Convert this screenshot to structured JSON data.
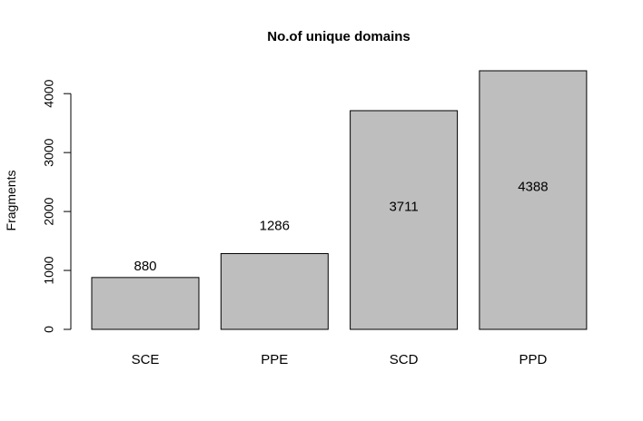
{
  "chart_data": {
    "type": "bar",
    "title": "No.of unique domains",
    "xlabel": "",
    "ylabel": "Fragments",
    "categories": [
      "SCE",
      "PPE",
      "SCD",
      "PPD"
    ],
    "values": [
      880,
      1286,
      3711,
      4388
    ],
    "data_labels": [
      "880",
      "1286",
      "3711",
      "4388"
    ],
    "ylim": [
      0,
      4388
    ],
    "yticks": [
      0,
      1000,
      2000,
      3000,
      4000
    ],
    "ytick_labels": [
      "0",
      "1000",
      "2000",
      "3000",
      "4000"
    ],
    "bar_color": "#bebebe",
    "grid": false,
    "legend": "none"
  }
}
